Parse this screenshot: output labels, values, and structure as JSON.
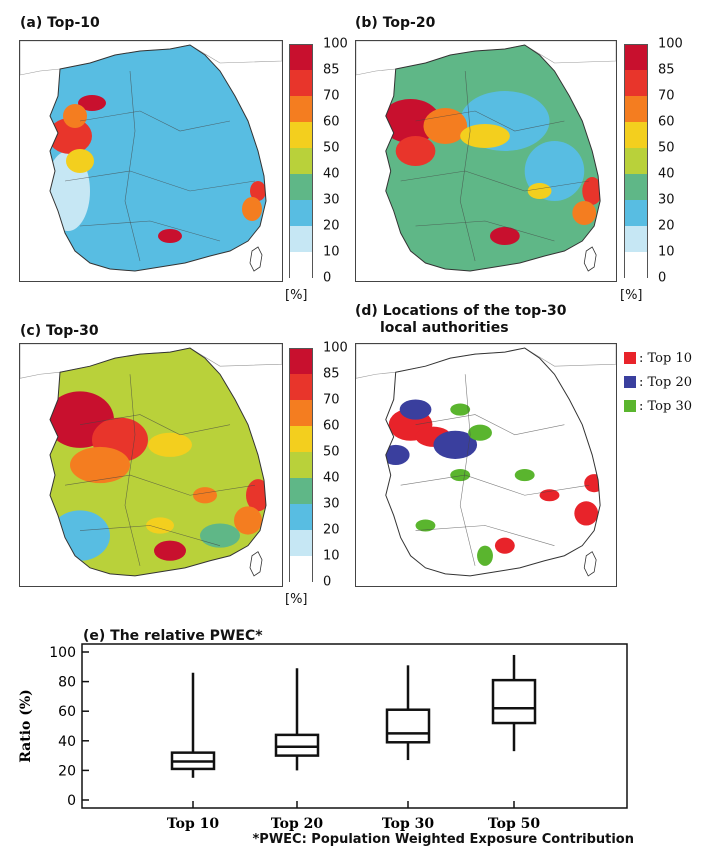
{
  "panels": {
    "a": {
      "title": "(a) Top-10"
    },
    "b": {
      "title": "(b) Top-20"
    },
    "c": {
      "title": "(c) Top-30"
    },
    "d": {
      "title_line1": "(d) Locations of the top-30",
      "title_line2": "local authorities"
    }
  },
  "colorbar": {
    "ticks": [
      "100",
      "85",
      "70",
      "60",
      "50",
      "40",
      "30",
      "20",
      "10",
      "0"
    ],
    "colors": [
      "#c8102e",
      "#e8352b",
      "#f47d20",
      "#f3cf1e",
      "#b9d13a",
      "#5fb787",
      "#58bde2",
      "#c6e7f4",
      "#ffffff"
    ],
    "unit": "[%]"
  },
  "legend": {
    "items": [
      {
        "label": "Top 10",
        "color": "#e8232a"
      },
      {
        "label": "Top 20",
        "color": "#3a3f9e"
      },
      {
        "label": "Top 30",
        "color": "#5ab52e"
      }
    ]
  },
  "footnote": "*PWEC: Population Weighted Exposure Contribution",
  "chart_data": {
    "type": "box",
    "title": "(e) The relative PWEC*",
    "xlabel": "",
    "ylabel": "Ratio (%)",
    "ylim": [
      0,
      100
    ],
    "yticks": [
      "0",
      "20",
      "40",
      "60",
      "80",
      "100"
    ],
    "categories": [
      "Top 10",
      "Top 20",
      "Top 30",
      "Top 50"
    ],
    "boxes": [
      {
        "min": 15,
        "q1": 21,
        "median": 26,
        "q3": 32,
        "max": 86
      },
      {
        "min": 20,
        "q1": 30,
        "median": 36,
        "q3": 44,
        "max": 89
      },
      {
        "min": 27,
        "q1": 39,
        "median": 45,
        "q3": 61,
        "max": 91
      },
      {
        "min": 33,
        "q1": 52,
        "median": 62,
        "q3": 81,
        "max": 98
      }
    ]
  }
}
